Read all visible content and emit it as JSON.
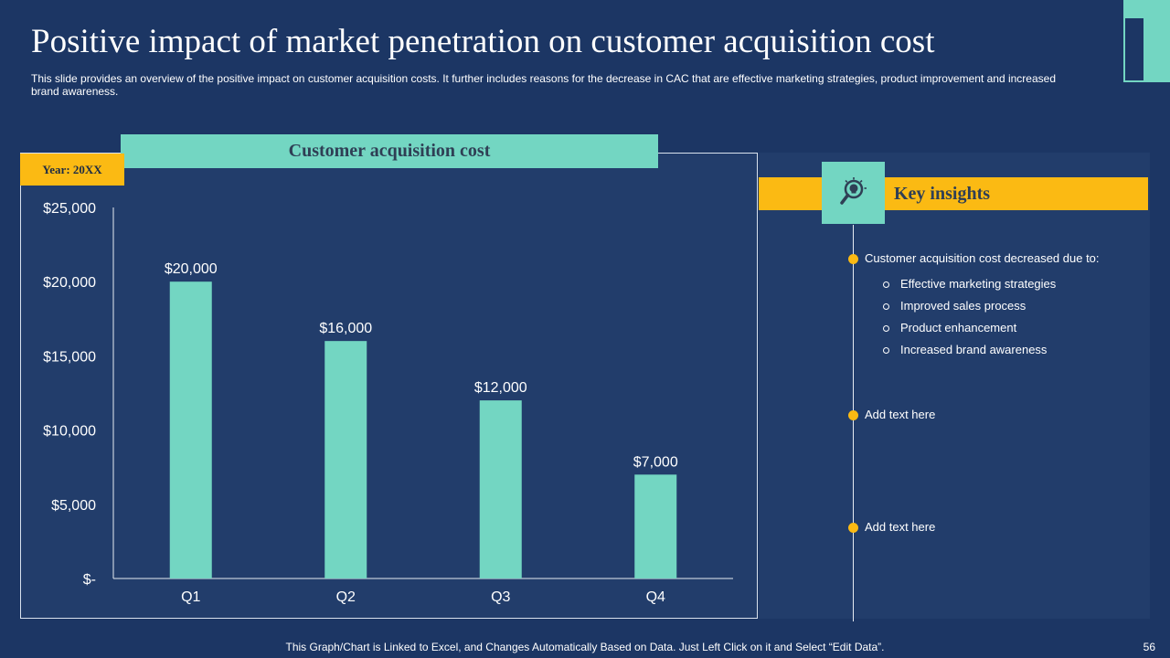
{
  "slide": {
    "title": "Positive impact of market penetration on customer acquisition cost",
    "subtitle": "This slide provides an overview of the positive impact on customer acquisition costs. It further includes reasons for the decrease in CAC that are effective marketing strategies, product improvement and increased brand awareness.",
    "footer_note": "This Graph/Chart is Linked to Excel, and Changes Automatically Based on Data. Just Left Click on it and Select “Edit Data”.",
    "page_number": "56"
  },
  "chart_panel": {
    "header": "Customer acquisition cost",
    "year_badge": "Year: 20XX"
  },
  "chart_data": {
    "type": "bar",
    "title": "Customer acquisition cost",
    "categories": [
      "Q1",
      "Q2",
      "Q3",
      "Q4"
    ],
    "values": [
      20000,
      16000,
      12000,
      7000
    ],
    "data_labels": [
      "$20,000",
      "$16,000",
      "$12,000",
      "$7,000"
    ],
    "y_ticks": [
      0,
      5000,
      10000,
      15000,
      20000,
      25000
    ],
    "y_tick_labels": [
      "$-",
      "$5,000",
      "$10,000",
      "$15,000",
      "$20,000",
      "$25,000"
    ],
    "ylim": [
      0,
      25000
    ],
    "xlabel": "",
    "ylabel": "",
    "grid": false,
    "legend": "none"
  },
  "insights": {
    "title": "Key insights",
    "icon": "lightbulb-magnifier-icon",
    "items": [
      {
        "text": "Customer acquisition cost decreased due to:",
        "sub_items": [
          "Effective marketing strategies",
          "Improved sales process",
          "Product enhancement",
          "Increased brand awareness"
        ]
      },
      {
        "text": "Add text here"
      },
      {
        "text": "Add text here"
      }
    ]
  },
  "colors": {
    "background": "#1c3664",
    "panel": "#223d6b",
    "teal": "#73d6c2",
    "yellow": "#fbba13",
    "dark_text": "#2f3f55"
  }
}
